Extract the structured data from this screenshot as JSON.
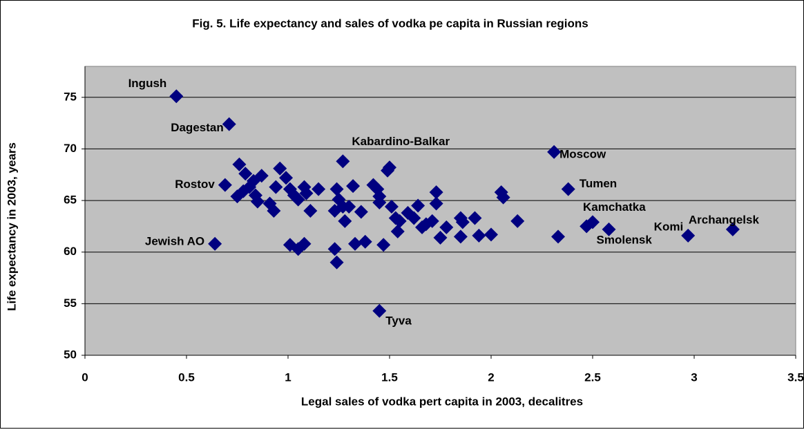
{
  "chart_data": {
    "type": "scatter",
    "title": "Fig. 5.  Life expectancy and sales of vodka pe capita in Russian regions",
    "x_label": "Legal sales of vodka pert capita in 2003, decalitres",
    "y_label": "Life expectancy in 2003, years",
    "xlim": [
      0,
      3.5
    ],
    "ylim": [
      50,
      78
    ],
    "xticks": [
      0,
      0.5,
      1,
      1.5,
      2,
      2.5,
      3,
      3.5
    ],
    "yticks": [
      50,
      55,
      60,
      65,
      70,
      75
    ],
    "grid": true,
    "background": "#c0c0c0",
    "series": [
      {
        "color": "#000080",
        "x": [
          0.45,
          0.71,
          1.27,
          2.31,
          2.38,
          2.5,
          2.58,
          2.97,
          3.19,
          0.69,
          0.64,
          1.45,
          0.76,
          0.79,
          0.83,
          0.75,
          0.78,
          0.81,
          0.84,
          0.87,
          0.91,
          0.93,
          0.85,
          0.96,
          0.99,
          1.01,
          0.94,
          1.03,
          1.05,
          1.08,
          1.09,
          1.11,
          1.15,
          1.01,
          1.05,
          1.08,
          1.23,
          1.24,
          1.24,
          1.23,
          1.25,
          1.27,
          1.28,
          1.3,
          1.32,
          1.36,
          1.33,
          1.38,
          1.42,
          1.44,
          1.45,
          1.45,
          1.47,
          1.49,
          1.5,
          1.51,
          1.53,
          1.54,
          1.55,
          1.59,
          1.62,
          1.64,
          1.66,
          1.68,
          1.71,
          1.73,
          1.73,
          1.75,
          1.78,
          2.05,
          2.06,
          1.85,
          1.85,
          1.86,
          1.94,
          1.92,
          2.0,
          2.13,
          2.33,
          2.47
        ],
        "y": [
          75.1,
          72.4,
          68.8,
          69.7,
          66.1,
          62.9,
          62.2,
          61.6,
          62.2,
          66.5,
          60.8,
          54.3,
          68.5,
          67.6,
          66.9,
          65.4,
          65.9,
          66.3,
          65.5,
          67.4,
          64.7,
          64.0,
          64.9,
          68.1,
          67.2,
          66.1,
          66.3,
          65.5,
          65.1,
          66.3,
          65.7,
          64.0,
          66.1,
          60.7,
          60.3,
          60.8,
          60.3,
          59.0,
          66.1,
          64.0,
          65.1,
          64.4,
          63.0,
          64.4,
          66.4,
          63.9,
          60.8,
          61.0,
          66.5,
          66.1,
          65.4,
          64.8,
          60.7,
          67.9,
          68.2,
          64.4,
          63.3,
          62.0,
          63.0,
          63.8,
          63.3,
          64.5,
          62.4,
          62.7,
          63.0,
          64.7,
          65.8,
          61.4,
          62.4,
          65.8,
          65.3,
          61.5,
          63.3,
          62.9,
          61.6,
          63.3,
          61.7,
          63.0,
          61.5,
          62.5
        ],
        "labels": [
          "Ingush",
          "Dagestan",
          "Kabardino-Balkar",
          "Moscow",
          "Tumen",
          "Kamchatka",
          "Smolensk",
          "Komi",
          "Archangelsk",
          "Rostov",
          "Jewish AO",
          "Tyva"
        ]
      }
    ]
  }
}
